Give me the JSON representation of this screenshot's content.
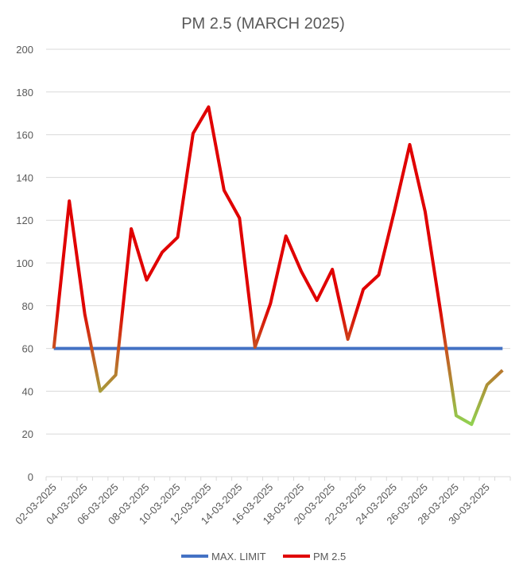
{
  "chart_data": {
    "type": "line",
    "title": "PM 2.5 (MARCH 2025)",
    "xlabel": "",
    "ylabel": "",
    "ylim": [
      0,
      200
    ],
    "yticks": [
      0,
      20,
      40,
      60,
      80,
      100,
      120,
      140,
      160,
      180,
      200
    ],
    "grid": true,
    "legend_position": "bottom",
    "x": [
      "02-03-2025",
      "03-03-2025",
      "04-03-2025",
      "05-03-2025",
      "06-03-2025",
      "07-03-2025",
      "08-03-2025",
      "09-03-2025",
      "10-03-2025",
      "11-03-2025",
      "12-03-2025",
      "13-03-2025",
      "14-03-2025",
      "15-03-2025",
      "16-03-2025",
      "17-03-2025",
      "18-03-2025",
      "19-03-2025",
      "20-03-2025",
      "21-03-2025",
      "22-03-2025",
      "23-03-2025",
      "24-03-2025",
      "25-03-2025",
      "26-03-2025",
      "27-03-2025",
      "28-03-2025",
      "29-03-2025",
      "30-03-2025",
      "31-03-2025"
    ],
    "x_tick_labels": [
      "02-03-2025",
      "04-03-2025",
      "06-03-2025",
      "08-03-2025",
      "10-03-2025",
      "12-03-2025",
      "14-03-2025",
      "16-03-2025",
      "18-03-2025",
      "20-03-2025",
      "22-03-2025",
      "24-03-2025",
      "26-03-2025",
      "28-03-2025",
      "30-03-2025"
    ],
    "series": [
      {
        "name": "MAX. LIMIT",
        "color": "#4472c4",
        "values": [
          60,
          60,
          60,
          60,
          60,
          60,
          60,
          60,
          60,
          60,
          60,
          60,
          60,
          60,
          60,
          60,
          60,
          60,
          60,
          60,
          60,
          60,
          60,
          60,
          60,
          60,
          60,
          60,
          60,
          60
        ]
      },
      {
        "name": "PM 2.5",
        "color": "#e00000",
        "values": [
          60,
          129,
          76,
          40,
          47.6,
          116,
          92,
          105,
          112,
          160.6,
          173,
          134,
          121,
          60.6,
          81,
          112.6,
          96,
          82.5,
          97,
          64.3,
          87.7,
          94.4,
          124,
          155.4,
          124,
          77,
          28.6,
          24.5,
          43,
          49.8
        ]
      }
    ]
  }
}
